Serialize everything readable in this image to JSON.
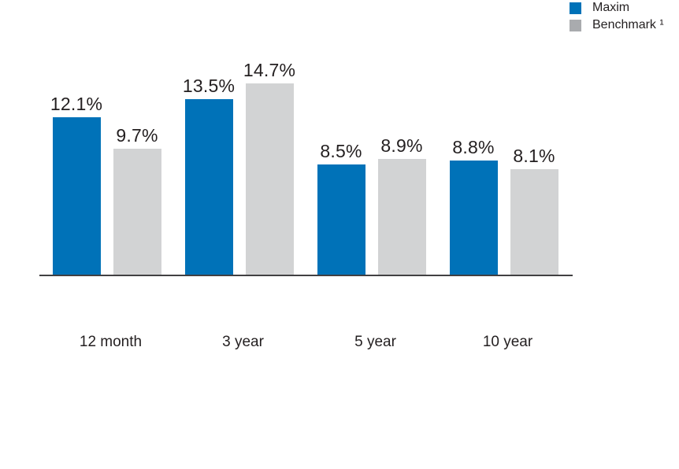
{
  "chart_data": {
    "type": "bar",
    "title": "",
    "xlabel": "",
    "ylabel": "",
    "categories": [
      "12 month",
      "3 year",
      "5 year",
      "10 year"
    ],
    "series": [
      {
        "name": "Maxim",
        "bar_color": "#0072b8",
        "legend_color": "#0072b8",
        "values": [
          12.1,
          13.5,
          8.5,
          8.8
        ],
        "labels": [
          "12.1%",
          "13.5%",
          "8.5%",
          "8.8%"
        ]
      },
      {
        "name": "Benchmark ¹",
        "bar_color": "#d2d3d4",
        "legend_color": "#a9abae",
        "values": [
          9.7,
          14.7,
          8.9,
          8.1
        ],
        "labels": [
          "9.7%",
          "14.7%",
          "8.9%",
          "8.1%"
        ]
      }
    ],
    "ylim": [
      0,
      16
    ],
    "grid": false,
    "legend_position": "top-right",
    "value_label_format": "percent",
    "axis_line_color": "#414042",
    "text_color": "#231f20",
    "background_color": "#ffffff"
  }
}
